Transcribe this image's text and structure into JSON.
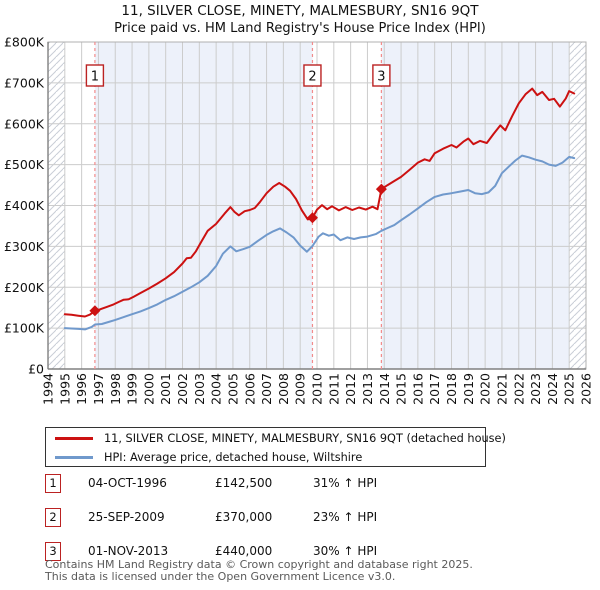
{
  "title": {
    "line1": "11, SILVER CLOSE, MINETY, MALMESBURY, SN16 9QT",
    "line2": "Price paid vs. HM Land Registry's House Price Index (HPI)"
  },
  "colors": {
    "property_line": "#cc1111",
    "hpi_line": "#7099cc",
    "shaded_period": "#edf1fa",
    "grid": "#cccccc",
    "axis": "#808080",
    "plot_border": "#b0b0b0",
    "sale_dashed_line": "#f28b8b",
    "sale_box_border": "#bb2222",
    "hatch_line": "#c9ced6"
  },
  "chart_data": {
    "type": "line",
    "title": "Price paid vs. HM Land Registry's House Price Index (HPI)",
    "xlabel": "",
    "ylabel": "",
    "x_range": [
      1994,
      2026
    ],
    "y_range_gbp": [
      0,
      800000
    ],
    "x_tick_labels": [
      "1994",
      "1995",
      "1996",
      "1997",
      "1998",
      "1999",
      "2000",
      "2001",
      "2002",
      "2003",
      "2004",
      "2005",
      "2006",
      "2007",
      "2008",
      "2009",
      "2010",
      "2011",
      "2012",
      "2013",
      "2014",
      "2015",
      "2016",
      "2017",
      "2018",
      "2019",
      "2020",
      "2021",
      "2022",
      "2023",
      "2024",
      "2025",
      "2026"
    ],
    "y_tick_labels": [
      "£0",
      "£100K",
      "£200K",
      "£300K",
      "£400K",
      "£500K",
      "£600K",
      "£700K",
      "£800K"
    ],
    "y_tick_values": [
      0,
      100000,
      200000,
      300000,
      400000,
      500000,
      600000,
      700000,
      800000
    ],
    "grid": true,
    "legend_position": "below",
    "shaded_periods": [
      [
        1996.79,
        2009.73
      ],
      [
        2013.83,
        2025.0
      ]
    ],
    "hatched_periods": [
      [
        1994.0,
        1995.0
      ],
      [
        2025.0,
        2026.0
      ]
    ],
    "series": [
      {
        "name": "11, SILVER CLOSE, MINETY, MALMESBURY, SN16 9QT (detached house)",
        "color": "#cc1111",
        "points": [
          [
            1995.0,
            134000
          ],
          [
            1995.4,
            132500
          ],
          [
            1995.8,
            130500
          ],
          [
            1996.2,
            128500
          ],
          [
            1996.5,
            133000
          ],
          [
            1996.79,
            142500
          ],
          [
            1997.1,
            146000
          ],
          [
            1997.5,
            152000
          ],
          [
            1997.9,
            158000
          ],
          [
            1998.2,
            164000
          ],
          [
            1998.5,
            169500
          ],
          [
            1998.8,
            170500
          ],
          [
            1999.1,
            177000
          ],
          [
            1999.5,
            186000
          ],
          [
            2000.0,
            197000
          ],
          [
            2000.5,
            209000
          ],
          [
            2001.0,
            222000
          ],
          [
            2001.5,
            237000
          ],
          [
            2002.0,
            258000
          ],
          [
            2002.25,
            271000
          ],
          [
            2002.5,
            272000
          ],
          [
            2002.8,
            288000
          ],
          [
            2003.1,
            310000
          ],
          [
            2003.5,
            338000
          ],
          [
            2004.0,
            355000
          ],
          [
            2004.5,
            380000
          ],
          [
            2004.85,
            396000
          ],
          [
            2005.1,
            384000
          ],
          [
            2005.35,
            376000
          ],
          [
            2005.7,
            386000
          ],
          [
            2006.0,
            389000
          ],
          [
            2006.3,
            394000
          ],
          [
            2006.6,
            408000
          ],
          [
            2007.0,
            430000
          ],
          [
            2007.4,
            446000
          ],
          [
            2007.75,
            455000
          ],
          [
            2008.1,
            446000
          ],
          [
            2008.4,
            436000
          ],
          [
            2008.75,
            416000
          ],
          [
            2009.1,
            388000
          ],
          [
            2009.45,
            366000
          ],
          [
            2009.73,
            370000
          ],
          [
            2010.0,
            390000
          ],
          [
            2010.3,
            401000
          ],
          [
            2010.6,
            391000
          ],
          [
            2010.9,
            398000
          ],
          [
            2011.3,
            388000
          ],
          [
            2011.7,
            396000
          ],
          [
            2012.1,
            389000
          ],
          [
            2012.5,
            395000
          ],
          [
            2012.9,
            390000
          ],
          [
            2013.3,
            397000
          ],
          [
            2013.6,
            391000
          ],
          [
            2013.83,
            440000
          ],
          [
            2014.2,
            450000
          ],
          [
            2014.6,
            460000
          ],
          [
            2015.0,
            470000
          ],
          [
            2015.5,
            487000
          ],
          [
            2016.0,
            505000
          ],
          [
            2016.4,
            513000
          ],
          [
            2016.7,
            509000
          ],
          [
            2017.0,
            528000
          ],
          [
            2017.5,
            539000
          ],
          [
            2018.0,
            548000
          ],
          [
            2018.3,
            542000
          ],
          [
            2018.7,
            556000
          ],
          [
            2019.0,
            564000
          ],
          [
            2019.3,
            550000
          ],
          [
            2019.7,
            558000
          ],
          [
            2020.1,
            553000
          ],
          [
            2020.5,
            575000
          ],
          [
            2020.9,
            596000
          ],
          [
            2021.2,
            584000
          ],
          [
            2021.6,
            618000
          ],
          [
            2022.0,
            650000
          ],
          [
            2022.4,
            672000
          ],
          [
            2022.8,
            686000
          ],
          [
            2023.1,
            670000
          ],
          [
            2023.4,
            678000
          ],
          [
            2023.8,
            658000
          ],
          [
            2024.1,
            661000
          ],
          [
            2024.45,
            642000
          ],
          [
            2024.8,
            662000
          ],
          [
            2025.0,
            680000
          ],
          [
            2025.3,
            674000
          ]
        ]
      },
      {
        "name": "HPI: Average price, detached house, Wiltshire",
        "color": "#7099cc",
        "points": [
          [
            1995.0,
            100000
          ],
          [
            1995.4,
            99000
          ],
          [
            1995.8,
            98000
          ],
          [
            1996.2,
            97000
          ],
          [
            1996.6,
            103000
          ],
          [
            1996.79,
            108800
          ],
          [
            1997.2,
            110000
          ],
          [
            1997.6,
            115000
          ],
          [
            1998.0,
            120000
          ],
          [
            1998.5,
            127000
          ],
          [
            1999.0,
            134000
          ],
          [
            1999.5,
            141000
          ],
          [
            2000.0,
            149000
          ],
          [
            2000.5,
            158000
          ],
          [
            2001.0,
            169000
          ],
          [
            2001.5,
            178000
          ],
          [
            2002.0,
            189000
          ],
          [
            2002.5,
            200000
          ],
          [
            2003.0,
            212000
          ],
          [
            2003.5,
            228000
          ],
          [
            2004.0,
            252000
          ],
          [
            2004.4,
            282000
          ],
          [
            2004.85,
            300000
          ],
          [
            2005.2,
            288000
          ],
          [
            2005.6,
            293000
          ],
          [
            2006.0,
            299000
          ],
          [
            2006.5,
            314000
          ],
          [
            2007.0,
            328000
          ],
          [
            2007.4,
            337000
          ],
          [
            2007.8,
            344000
          ],
          [
            2008.2,
            334000
          ],
          [
            2008.6,
            322000
          ],
          [
            2009.0,
            302000
          ],
          [
            2009.4,
            287000
          ],
          [
            2009.73,
            301000
          ],
          [
            2010.1,
            324000
          ],
          [
            2010.35,
            332000
          ],
          [
            2010.7,
            326000
          ],
          [
            2011.0,
            329000
          ],
          [
            2011.4,
            315000
          ],
          [
            2011.8,
            322000
          ],
          [
            2012.2,
            318000
          ],
          [
            2012.6,
            322000
          ],
          [
            2013.0,
            324000
          ],
          [
            2013.5,
            330000
          ],
          [
            2013.83,
            338000
          ],
          [
            2014.2,
            345000
          ],
          [
            2014.6,
            352000
          ],
          [
            2015.0,
            364000
          ],
          [
            2015.5,
            378000
          ],
          [
            2016.0,
            393000
          ],
          [
            2016.5,
            408000
          ],
          [
            2017.0,
            421000
          ],
          [
            2017.5,
            427000
          ],
          [
            2018.0,
            430000
          ],
          [
            2018.5,
            434000
          ],
          [
            2019.0,
            438000
          ],
          [
            2019.4,
            430000
          ],
          [
            2019.8,
            428000
          ],
          [
            2020.2,
            432000
          ],
          [
            2020.6,
            448000
          ],
          [
            2021.0,
            479000
          ],
          [
            2021.4,
            495000
          ],
          [
            2021.8,
            510000
          ],
          [
            2022.2,
            522000
          ],
          [
            2022.6,
            518000
          ],
          [
            2023.0,
            512000
          ],
          [
            2023.4,
            508000
          ],
          [
            2023.8,
            500000
          ],
          [
            2024.2,
            497000
          ],
          [
            2024.6,
            505000
          ],
          [
            2025.0,
            519000
          ],
          [
            2025.3,
            516000
          ]
        ]
      }
    ],
    "sale_markers": [
      {
        "label": "1",
        "year": 1996.79,
        "price": 142500
      },
      {
        "label": "2",
        "year": 2009.73,
        "price": 370000
      },
      {
        "label": "3",
        "year": 2013.83,
        "price": 440000
      }
    ]
  },
  "legend": {
    "rows": [
      {
        "label": "11, SILVER CLOSE, MINETY, MALMESBURY, SN16 9QT (detached house)"
      },
      {
        "label": "HPI: Average price, detached house, Wiltshire"
      }
    ]
  },
  "sales_table": {
    "rows": [
      {
        "num": "1",
        "date": "04-OCT-1996",
        "price": "£142,500",
        "hpi": "31% ↑ HPI"
      },
      {
        "num": "2",
        "date": "25-SEP-2009",
        "price": "£370,000",
        "hpi": "23% ↑ HPI"
      },
      {
        "num": "3",
        "date": "01-NOV-2013",
        "price": "£440,000",
        "hpi": "30% ↑ HPI"
      }
    ]
  },
  "footer": {
    "line1": "Contains HM Land Registry data © Crown copyright and database right 2025.",
    "line2": "This data is licensed under the Open Government Licence v3.0."
  }
}
